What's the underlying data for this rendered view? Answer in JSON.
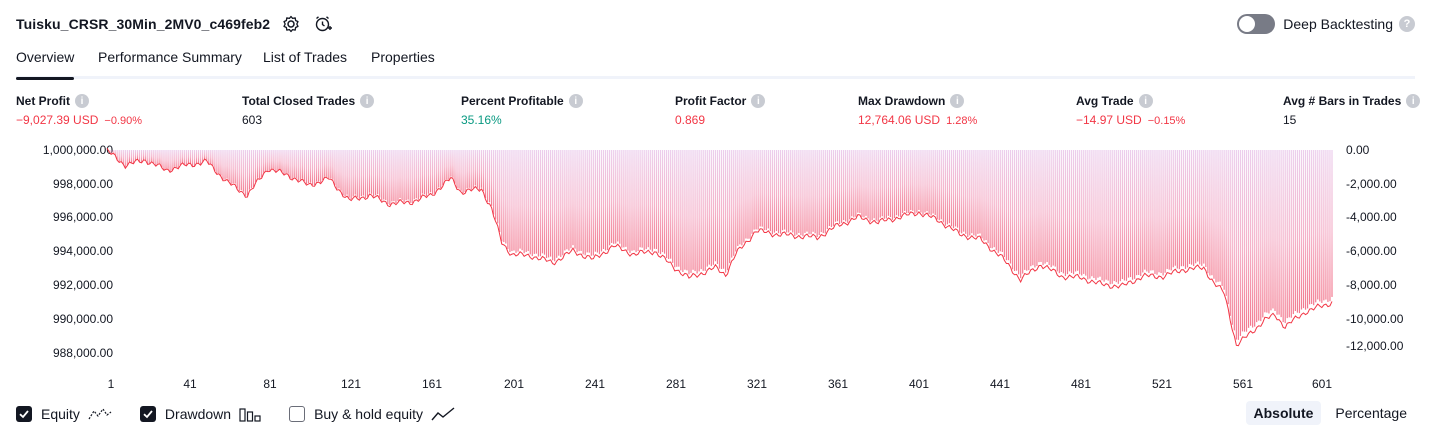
{
  "header": {
    "strategy_name": "Tuisku_CRSR_30Min_2MV0_c469feb2",
    "settings_icon": "gear-icon",
    "alert_icon": "add-alert-icon",
    "deep_backtesting_label": "Deep Backtesting",
    "deep_backtesting_enabled": false,
    "help_icon": "question-icon"
  },
  "tabs": [
    {
      "label": "Overview",
      "active": true
    },
    {
      "label": "Performance Summary",
      "active": false
    },
    {
      "label": "List of Trades",
      "active": false
    },
    {
      "label": "Properties",
      "active": false
    }
  ],
  "metrics": [
    {
      "label": "Net Profit",
      "value": "−9,027.39 USD",
      "sub": "−0.90%",
      "tone": "neg"
    },
    {
      "label": "Total Closed Trades",
      "value": "603",
      "sub": "",
      "tone": "neutral"
    },
    {
      "label": "Percent Profitable",
      "value": "35.16%",
      "sub": "",
      "tone": "pos"
    },
    {
      "label": "Profit Factor",
      "value": "0.869",
      "sub": "",
      "tone": "neg"
    },
    {
      "label": "Max Drawdown",
      "value": "12,764.06 USD",
      "sub": "1.28%",
      "tone": "neg"
    },
    {
      "label": "Avg Trade",
      "value": "−14.97 USD",
      "sub": "−0.15%",
      "tone": "neg"
    },
    {
      "label": "Avg # Bars in Trades",
      "value": "15",
      "sub": "",
      "tone": "neutral"
    }
  ],
  "chart_data": {
    "type": "area",
    "xlabel": "",
    "ylabel": "",
    "x_ticks": [
      "1",
      "41",
      "81",
      "121",
      "161",
      "201",
      "241",
      "281",
      "321",
      "361",
      "401",
      "441",
      "481",
      "521",
      "561",
      "601"
    ],
    "y_left_ticks": [
      "1,000,000.00",
      "998,000.00",
      "996,000.00",
      "994,000.00",
      "992,000.00",
      "990,000.00",
      "988,000.00"
    ],
    "y_right_ticks": [
      "0.00",
      "-2,000.00",
      "-4,000.00",
      "-6,000.00",
      "-8,000.00",
      "-10,000.00",
      "-12,000.00"
    ],
    "ylim_left": [
      1000000,
      988000
    ],
    "ylim_right": [
      0,
      -12000
    ],
    "xlim": [
      1,
      603
    ],
    "series": [
      {
        "name": "Equity",
        "color": "#f23645",
        "points": [
          [
            1,
            999950
          ],
          [
            10,
            999100
          ],
          [
            20,
            999400
          ],
          [
            30,
            998800
          ],
          [
            40,
            999100
          ],
          [
            50,
            999300
          ],
          [
            60,
            998100
          ],
          [
            70,
            997300
          ],
          [
            80,
            998900
          ],
          [
            90,
            998500
          ],
          [
            100,
            997900
          ],
          [
            110,
            998300
          ],
          [
            120,
            997000
          ],
          [
            130,
            997300
          ],
          [
            140,
            996800
          ],
          [
            150,
            996900
          ],
          [
            160,
            997300
          ],
          [
            170,
            998300
          ],
          [
            175,
            997500
          ],
          [
            185,
            997700
          ],
          [
            190,
            996500
          ],
          [
            195,
            994500
          ],
          [
            200,
            993800
          ],
          [
            210,
            993700
          ],
          [
            220,
            993300
          ],
          [
            230,
            994000
          ],
          [
            240,
            993500
          ],
          [
            250,
            994300
          ],
          [
            260,
            993800
          ],
          [
            270,
            994000
          ],
          [
            280,
            993000
          ],
          [
            287,
            992400
          ],
          [
            300,
            993000
          ],
          [
            305,
            992600
          ],
          [
            310,
            993800
          ],
          [
            320,
            995200
          ],
          [
            330,
            995000
          ],
          [
            340,
            994900
          ],
          [
            350,
            994800
          ],
          [
            360,
            995500
          ],
          [
            370,
            996000
          ],
          [
            380,
            995700
          ],
          [
            390,
            996000
          ],
          [
            400,
            996300
          ],
          [
            410,
            995800
          ],
          [
            420,
            995000
          ],
          [
            430,
            994700
          ],
          [
            440,
            993700
          ],
          [
            450,
            992300
          ],
          [
            460,
            993200
          ],
          [
            470,
            992500
          ],
          [
            480,
            992400
          ],
          [
            490,
            992000
          ],
          [
            500,
            991900
          ],
          [
            510,
            992500
          ],
          [
            520,
            992500
          ],
          [
            530,
            992900
          ],
          [
            540,
            993000
          ],
          [
            545,
            992100
          ],
          [
            550,
            991500
          ],
          [
            553,
            990000
          ],
          [
            556,
            988400
          ],
          [
            560,
            988800
          ],
          [
            570,
            989900
          ],
          [
            575,
            990200
          ],
          [
            580,
            989500
          ],
          [
            590,
            990400
          ],
          [
            600,
            990800
          ],
          [
            603,
            990973
          ]
        ]
      },
      {
        "name": "Drawdown",
        "color": "#f7a9b9",
        "points": [
          [
            1,
            -50
          ],
          [
            10,
            -900
          ],
          [
            20,
            -600
          ],
          [
            30,
            -1200
          ],
          [
            40,
            -900
          ],
          [
            50,
            -700
          ],
          [
            60,
            -1900
          ],
          [
            70,
            -2700
          ],
          [
            80,
            -1100
          ],
          [
            90,
            -1500
          ],
          [
            100,
            -2100
          ],
          [
            110,
            -1700
          ],
          [
            120,
            -3000
          ],
          [
            130,
            -2700
          ],
          [
            140,
            -3200
          ],
          [
            150,
            -3100
          ],
          [
            160,
            -2700
          ],
          [
            170,
            -1700
          ],
          [
            175,
            -2500
          ],
          [
            185,
            -2300
          ],
          [
            190,
            -3500
          ],
          [
            195,
            -5500
          ],
          [
            200,
            -6200
          ],
          [
            210,
            -6300
          ],
          [
            220,
            -6700
          ],
          [
            230,
            -6000
          ],
          [
            240,
            -6500
          ],
          [
            250,
            -5700
          ],
          [
            260,
            -6200
          ],
          [
            270,
            -6000
          ],
          [
            280,
            -7000
          ],
          [
            287,
            -7600
          ],
          [
            300,
            -7000
          ],
          [
            305,
            -7400
          ],
          [
            310,
            -6200
          ],
          [
            320,
            -4800
          ],
          [
            330,
            -5000
          ],
          [
            340,
            -5100
          ],
          [
            350,
            -5200
          ],
          [
            360,
            -4500
          ],
          [
            370,
            -4000
          ],
          [
            380,
            -4300
          ],
          [
            390,
            -4000
          ],
          [
            400,
            -3700
          ],
          [
            410,
            -4200
          ],
          [
            420,
            -5000
          ],
          [
            430,
            -5300
          ],
          [
            440,
            -6300
          ],
          [
            450,
            -7700
          ],
          [
            460,
            -6800
          ],
          [
            470,
            -7500
          ],
          [
            480,
            -7600
          ],
          [
            490,
            -8000
          ],
          [
            500,
            -8100
          ],
          [
            510,
            -7500
          ],
          [
            520,
            -7500
          ],
          [
            530,
            -7100
          ],
          [
            540,
            -7000
          ],
          [
            545,
            -7900
          ],
          [
            550,
            -8500
          ],
          [
            553,
            -10000
          ],
          [
            556,
            -11600
          ],
          [
            560,
            -11200
          ],
          [
            570,
            -10100
          ],
          [
            575,
            -9800
          ],
          [
            580,
            -10500
          ],
          [
            590,
            -9600
          ],
          [
            600,
            -9200
          ],
          [
            603,
            -9027
          ]
        ]
      }
    ]
  },
  "legend": [
    {
      "label": "Equity",
      "checked": true,
      "icon": "equity-line-icon"
    },
    {
      "label": "Drawdown",
      "checked": true,
      "icon": "drawdown-bars-icon"
    },
    {
      "label": "Buy & hold equity",
      "checked": false,
      "icon": "buy-hold-line-icon"
    }
  ],
  "scale_toggle": {
    "absolute": "Absolute",
    "percentage": "Percentage",
    "selected": "Absolute"
  },
  "colors": {
    "negative": "#f23645",
    "positive": "#089981",
    "text": "#131722"
  }
}
